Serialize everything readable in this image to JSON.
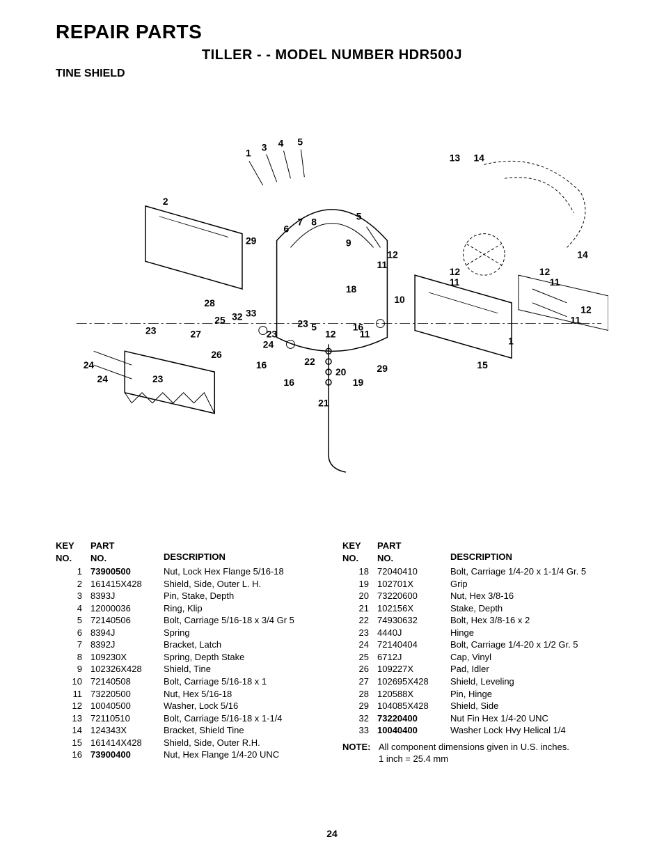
{
  "header": {
    "main_title": "REPAIR PARTS",
    "model_line": "TILLER - - MODEL NUMBER HDR500J",
    "section": "TINE SHIELD"
  },
  "diagram": {
    "type": "exploded-parts-diagram",
    "callouts": [
      "1",
      "2",
      "3",
      "4",
      "5",
      "6",
      "7",
      "8",
      "9",
      "10",
      "11",
      "12",
      "13",
      "14",
      "15",
      "16",
      "18",
      "19",
      "20",
      "21",
      "22",
      "23",
      "24",
      "25",
      "26",
      "27",
      "28",
      "29",
      "32",
      "33"
    ]
  },
  "table_headers": {
    "key": "KEY",
    "no": "NO.",
    "part": "PART",
    "desc": "DESCRIPTION"
  },
  "parts_left": [
    {
      "key": "1",
      "part": "73900500",
      "desc": "Nut, Lock Hex Flange  5/16-18",
      "bold": true
    },
    {
      "key": "2",
      "part": "161415X428",
      "desc": "Shield, Side, Outer L. H."
    },
    {
      "key": "3",
      "part": "8393J",
      "desc": "Pin, Stake, Depth"
    },
    {
      "key": "4",
      "part": "12000036",
      "desc": "Ring, Klip"
    },
    {
      "key": "5",
      "part": "72140506",
      "desc": "Bolt, Carriage  5/16-18 x 3/4 Gr 5"
    },
    {
      "key": "6",
      "part": "8394J",
      "desc": "Spring"
    },
    {
      "key": "7",
      "part": "8392J",
      "desc": "Bracket, Latch"
    },
    {
      "key": "8",
      "part": "109230X",
      "desc": "Spring, Depth Stake"
    },
    {
      "key": "9",
      "part": "102326X428",
      "desc": "Shield, Tine"
    },
    {
      "key": "10",
      "part": "72140508",
      "desc": "Bolt, Carriage 5/16-18 x 1"
    },
    {
      "key": "11",
      "part": "73220500",
      "desc": "Nut, Hex 5/16-18"
    },
    {
      "key": "12",
      "part": "10040500",
      "desc": "Washer, Lock 5/16"
    },
    {
      "key": "13",
      "part": "72110510",
      "desc": "Bolt, Carriage 5/16-18 x 1-1/4"
    },
    {
      "key": "14",
      "part": "124343X",
      "desc": "Bracket, Shield Tine"
    },
    {
      "key": "15",
      "part": "161414X428",
      "desc": "Shield, Side, Outer R.H."
    },
    {
      "key": "16",
      "part": "73900400",
      "desc": "Nut, Hex Flange 1/4-20 UNC",
      "bold": true
    }
  ],
  "parts_right": [
    {
      "key": "18",
      "part": "72040410",
      "desc": "Bolt, Carriage  1/4-20 x 1-1/4 Gr. 5"
    },
    {
      "key": "19",
      "part": "102701X",
      "desc": "Grip"
    },
    {
      "key": "20",
      "part": "73220600",
      "desc": "Nut, Hex  3/8-16"
    },
    {
      "key": "21",
      "part": "102156X",
      "desc": "Stake, Depth"
    },
    {
      "key": "22",
      "part": "74930632",
      "desc": "Bolt, Hex  3/8-16 x 2"
    },
    {
      "key": "23",
      "part": "4440J",
      "desc": "Hinge"
    },
    {
      "key": "24",
      "part": "72140404",
      "desc": "Bolt, Carriage  1/4-20 x 1/2 Gr. 5"
    },
    {
      "key": "25",
      "part": "6712J",
      "desc": "Cap, Vinyl"
    },
    {
      "key": "26",
      "part": "109227X",
      "desc": "Pad, Idler"
    },
    {
      "key": "27",
      "part": "102695X428",
      "desc": "Shield, Leveling"
    },
    {
      "key": "28",
      "part": "120588X",
      "desc": "Pin, Hinge"
    },
    {
      "key": "29",
      "part": "104085X428",
      "desc": "Shield, Side"
    },
    {
      "key": "32",
      "part": "73220400",
      "desc": "Nut Fin Hex 1/4-20 UNC",
      "bold": true
    },
    {
      "key": "33",
      "part": "10040400",
      "desc": "Washer Lock Hvy Helical 1/4",
      "bold": true
    }
  ],
  "note": {
    "label": "NOTE:",
    "text": "All component dimensions given in U.S. inches.",
    "sub": "1 inch = 25.4 mm"
  },
  "page_number": "24",
  "colors": {
    "text": "#000000",
    "background": "#ffffff",
    "line": "#000000"
  },
  "typography": {
    "main_title_size": 28,
    "model_size": 20,
    "section_size": 16,
    "body_size": 13,
    "callout_size": 14
  }
}
